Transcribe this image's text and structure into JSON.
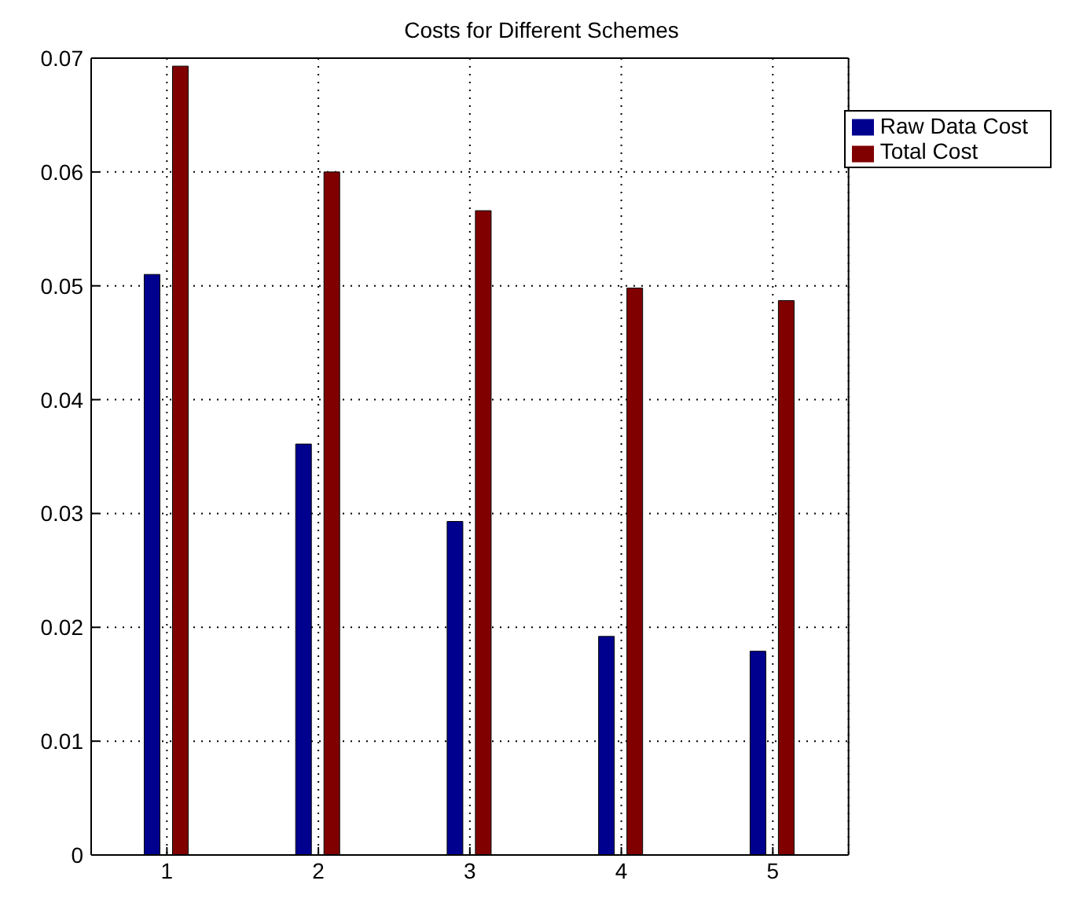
{
  "chart_data": {
    "type": "bar",
    "title": "Costs for Different Schemes",
    "categories": [
      "1",
      "2",
      "3",
      "4",
      "5"
    ],
    "series": [
      {
        "name": "Raw Data Cost",
        "color": "#00008f",
        "values": [
          0.051,
          0.0361,
          0.0293,
          0.0192,
          0.0179
        ]
      },
      {
        "name": "Total Cost",
        "color": "#800000",
        "values": [
          0.0693,
          0.06,
          0.0566,
          0.0498,
          0.0487
        ]
      }
    ],
    "ylim": [
      0,
      0.07
    ],
    "yticks": [
      0,
      0.01,
      0.02,
      0.03,
      0.04,
      0.05,
      0.06,
      0.07
    ],
    "grid": true,
    "legend": "top right"
  }
}
